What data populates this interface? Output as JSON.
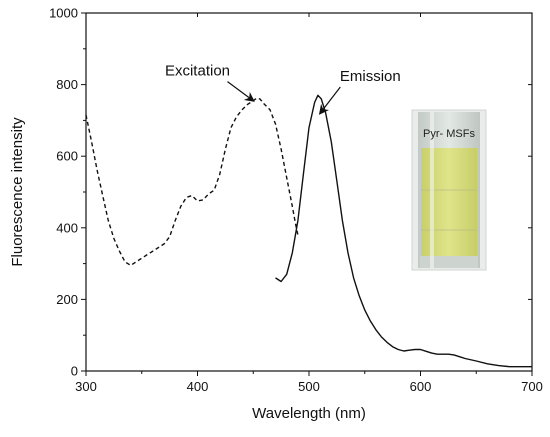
{
  "chart_data": {
    "type": "line",
    "title": "",
    "xlabel": "Wavelength (nm)",
    "ylabel": "Fluorescence intensity",
    "xlim": [
      300,
      700
    ],
    "ylim": [
      0,
      1000
    ],
    "x_ticks": [
      300,
      400,
      500,
      600,
      700
    ],
    "y_ticks": [
      0,
      200,
      400,
      600,
      800,
      1000
    ],
    "grid": false,
    "legend": "none",
    "series": [
      {
        "name": "Excitation",
        "line_style": "dashed",
        "color": "#111111",
        "points": [
          [
            300,
            715
          ],
          [
            305,
            640
          ],
          [
            310,
            560
          ],
          [
            315,
            490
          ],
          [
            320,
            420
          ],
          [
            325,
            370
          ],
          [
            330,
            335
          ],
          [
            335,
            305
          ],
          [
            340,
            295
          ],
          [
            345,
            305
          ],
          [
            350,
            315
          ],
          [
            355,
            325
          ],
          [
            360,
            335
          ],
          [
            365,
            345
          ],
          [
            370,
            355
          ],
          [
            375,
            375
          ],
          [
            380,
            420
          ],
          [
            385,
            460
          ],
          [
            390,
            485
          ],
          [
            395,
            490
          ],
          [
            400,
            475
          ],
          [
            405,
            478
          ],
          [
            410,
            495
          ],
          [
            415,
            505
          ],
          [
            420,
            550
          ],
          [
            425,
            620
          ],
          [
            430,
            680
          ],
          [
            435,
            710
          ],
          [
            440,
            730
          ],
          [
            445,
            745
          ],
          [
            450,
            755
          ],
          [
            453,
            762
          ],
          [
            456,
            760
          ],
          [
            460,
            745
          ],
          [
            465,
            730
          ],
          [
            470,
            690
          ],
          [
            475,
            620
          ],
          [
            480,
            540
          ],
          [
            485,
            460
          ],
          [
            488,
            410
          ],
          [
            490,
            380
          ]
        ]
      },
      {
        "name": "Emission",
        "line_style": "solid",
        "color": "#111111",
        "points": [
          [
            470,
            260
          ],
          [
            475,
            250
          ],
          [
            480,
            270
          ],
          [
            485,
            330
          ],
          [
            490,
            420
          ],
          [
            495,
            550
          ],
          [
            500,
            680
          ],
          [
            505,
            750
          ],
          [
            508,
            770
          ],
          [
            511,
            760
          ],
          [
            515,
            720
          ],
          [
            520,
            640
          ],
          [
            525,
            530
          ],
          [
            530,
            420
          ],
          [
            535,
            330
          ],
          [
            540,
            260
          ],
          [
            545,
            210
          ],
          [
            550,
            170
          ],
          [
            555,
            140
          ],
          [
            560,
            115
          ],
          [
            565,
            95
          ],
          [
            570,
            80
          ],
          [
            575,
            68
          ],
          [
            580,
            60
          ],
          [
            585,
            56
          ],
          [
            590,
            58
          ],
          [
            595,
            60
          ],
          [
            600,
            60
          ],
          [
            605,
            55
          ],
          [
            610,
            50
          ],
          [
            615,
            47
          ],
          [
            620,
            47
          ],
          [
            625,
            47
          ],
          [
            630,
            45
          ],
          [
            635,
            40
          ],
          [
            640,
            35
          ],
          [
            650,
            28
          ],
          [
            660,
            20
          ],
          [
            670,
            15
          ],
          [
            680,
            12
          ],
          [
            690,
            12
          ],
          [
            700,
            12
          ]
        ]
      }
    ],
    "annotations": [
      {
        "text": "Excitation",
        "x": 400,
        "y": 825,
        "arrow_to": [
          450,
          755
        ]
      },
      {
        "text": "Emission",
        "x": 555,
        "y": 810,
        "arrow_to": [
          510,
          720
        ]
      }
    ],
    "inset": {
      "label": "Pyr- MSFs",
      "description_color_liquid": "#d6dc7a",
      "description_color_glass": "#cfd6d2"
    }
  }
}
